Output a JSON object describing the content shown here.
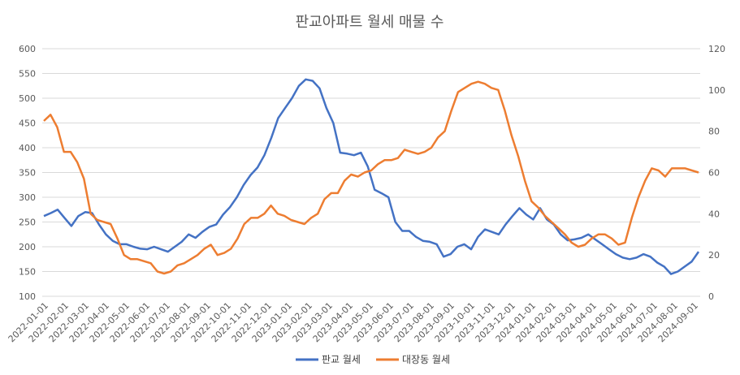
{
  "chart_data": {
    "type": "line",
    "title": "판교아파트 월세 매물 수",
    "x_labels": [
      "2022-01-01",
      "2022-02-01",
      "2022-03-01",
      "2022-04-01",
      "2022-05-01",
      "2022-06-01",
      "2022-07-01",
      "2022-08-01",
      "2022-09-01",
      "2022-10-01",
      "2022-11-01",
      "2022-12-01",
      "2023-01-01",
      "2023-02-01",
      "2023-03-01",
      "2023-04-01",
      "2023-05-01",
      "2023-06-01",
      "2023-07-01",
      "2023-08-01",
      "2023-09-01",
      "2023-10-01",
      "2023-11-01",
      "2023-12-01",
      "2024-01-01",
      "2024-02-01",
      "2024-03-01",
      "2024-04-01",
      "2024-05-01",
      "2024-06-01",
      "2024-07-01",
      "2024-08-01",
      "2024-09-01"
    ],
    "y_left": {
      "min": 100,
      "max": 600,
      "step": 50,
      "ticks": [
        "100",
        "150",
        "200",
        "250",
        "300",
        "350",
        "400",
        "450",
        "500",
        "550",
        "600"
      ]
    },
    "y_right": {
      "min": 0,
      "max": 120,
      "step": 20,
      "ticks": [
        "0",
        "20",
        "40",
        "60",
        "80",
        "100",
        "120"
      ]
    },
    "legend_position": "bottom",
    "series": [
      {
        "name": "판교 월세",
        "axis": "left",
        "color": "#4472C4",
        "values": [
          262,
          268,
          275,
          258,
          242,
          262,
          270,
          268,
          245,
          225,
          212,
          205,
          205,
          200,
          196,
          195,
          200,
          195,
          190,
          200,
          210,
          225,
          218,
          230,
          240,
          245,
          265,
          280,
          300,
          325,
          345,
          360,
          385,
          420,
          460,
          480,
          500,
          525,
          538,
          535,
          520,
          480,
          450,
          390,
          388,
          385,
          390,
          362,
          315,
          308,
          300,
          250,
          232,
          232,
          220,
          212,
          210,
          205,
          180,
          185,
          200,
          205,
          195,
          220,
          235,
          230,
          225,
          245,
          262,
          278,
          265,
          255,
          278,
          255,
          245,
          225,
          213,
          215,
          218,
          225,
          215,
          205,
          195,
          185,
          178,
          175,
          178,
          185,
          180,
          168,
          160,
          145,
          150,
          160,
          170,
          190
        ],
        "start_index": 0
      },
      {
        "name": "대장동 월세",
        "axis": "right",
        "color": "#ED7D31",
        "values": [
          85,
          88,
          82,
          70,
          70,
          65,
          57,
          40,
          37,
          36,
          35,
          28,
          20,
          18,
          18,
          17,
          16,
          12,
          11,
          12,
          15,
          16,
          18,
          20,
          23,
          25,
          20,
          21,
          23,
          28,
          35,
          38,
          38,
          40,
          44,
          40,
          39,
          37,
          36,
          35,
          38,
          40,
          47,
          50,
          50,
          56,
          59,
          58,
          60,
          61,
          64,
          66,
          66,
          67,
          71,
          70,
          69,
          70,
          72,
          77,
          80,
          90,
          99,
          101,
          103,
          104,
          103,
          101,
          100,
          90,
          78,
          68,
          56,
          46,
          43,
          39,
          36,
          33,
          30,
          26,
          24,
          25,
          28,
          30,
          30,
          28,
          25,
          26,
          38,
          48,
          56,
          62,
          61,
          58,
          62,
          62,
          62,
          61,
          60
        ],
        "start_index": 0
      }
    ]
  },
  "legend": {
    "series_1": "판교 월세",
    "series_2": "대장동 월세"
  }
}
